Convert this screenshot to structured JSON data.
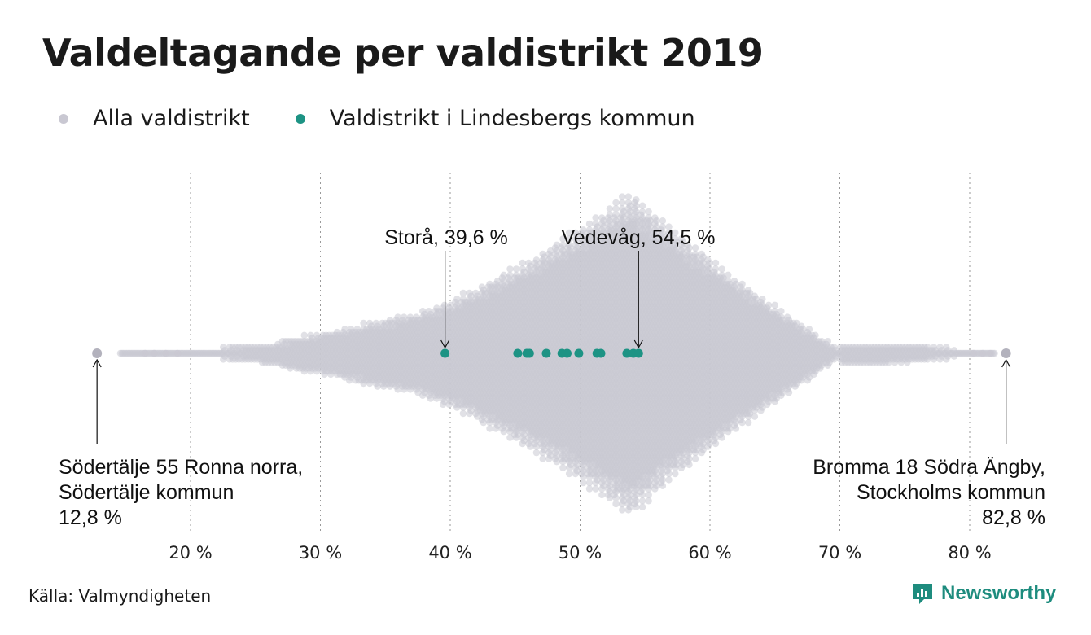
{
  "title": "Valdeltagande per valdistrikt 2019",
  "legend": {
    "all": "Alla valdistrikt",
    "highlight": "Valdistrikt i Lindesbergs kommun"
  },
  "colors": {
    "all": "#c9c8d2",
    "highlight": "#1d9384",
    "grid": "#9a9a9a",
    "brand": "#1e8c7e"
  },
  "source": "Källa: Valmyndigheten",
  "brand": "Newsworthy",
  "chart_data": {
    "type": "scatter",
    "subtype": "beeswarm",
    "x_unit": "%",
    "xlim": [
      12,
      84
    ],
    "xticks": [
      20,
      30,
      40,
      50,
      60,
      70,
      80
    ],
    "xtick_labels": [
      "20 %",
      "30 %",
      "40 %",
      "50 %",
      "60 %",
      "70 %",
      "80 %"
    ],
    "grid": "vertical dotted",
    "legend_position": "top-left",
    "all_districts": {
      "min": 12.8,
      "max": 82.8,
      "peak": 54.0
    },
    "series": [
      {
        "name": "Valdistrikt i Lindesbergs kommun",
        "values": [
          39.6,
          45.2,
          45.9,
          46.1,
          47.4,
          48.6,
          49.0,
          49.9,
          51.3,
          51.6,
          53.6,
          54.1,
          54.5
        ]
      }
    ],
    "annotations": [
      {
        "label": "Storå, 39,6 %",
        "value": 39.6
      },
      {
        "label": "Vedevåg, 54,5 %",
        "value": 54.5
      },
      {
        "lines": [
          "Södertälje 55 Ronna norra,",
          "Södertälje kommun",
          "12,8 %"
        ],
        "value": 12.8
      },
      {
        "lines": [
          "Bromma 18 Södra Ängby,",
          "Stockholms kommun",
          "82,8 %"
        ],
        "value": 82.8
      }
    ]
  }
}
